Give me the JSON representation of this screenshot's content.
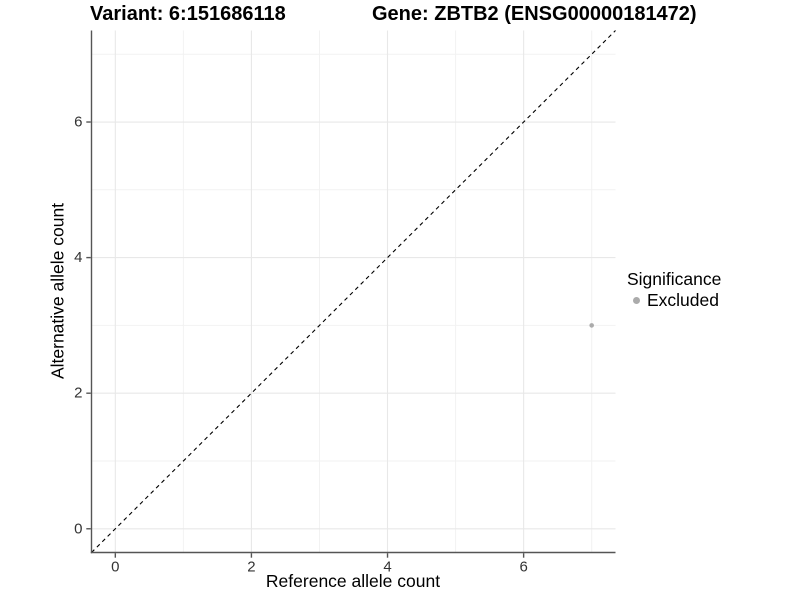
{
  "figure": {
    "background": "#FFFFFF"
  },
  "titles": {
    "variant": "Variant: 6:151686118",
    "gene": "Gene: ZBTB2 (ENSG00000181472)"
  },
  "chart_data": {
    "type": "scatter",
    "title": "Variant: 6:151686118   Gene: ZBTB2 (ENSG00000181472)",
    "xlabel": "Reference allele count",
    "ylabel": "Alternative allele count",
    "xlim": [
      -0.35,
      7.35
    ],
    "ylim": [
      -0.35,
      7.35
    ],
    "x_ticks": [
      0,
      2,
      4,
      6
    ],
    "y_ticks": [
      0,
      2,
      4,
      6
    ],
    "x_minor_ticks": [
      1,
      3,
      5,
      7
    ],
    "y_minor_ticks": [
      1,
      3,
      5,
      7
    ],
    "grid": "major+minor",
    "identity_line": {
      "style": "dashed",
      "color": "#000000",
      "from": [
        -0.35,
        -0.35
      ],
      "to": [
        7.35,
        7.35
      ]
    },
    "series": [
      {
        "name": "Excluded",
        "color": "#ABABAB",
        "points": [
          {
            "x": 7,
            "y": 3
          }
        ]
      }
    ],
    "legend": {
      "title": "Significance",
      "position": "right",
      "entries": [
        {
          "label": "Excluded",
          "color": "#ABABAB"
        }
      ]
    },
    "colors": {
      "background": "#FFFFFF",
      "axis_line": "#555555",
      "tick_label": "#333333",
      "grid_major": "#E8E8E8",
      "grid_minor": "#F2F2F2"
    }
  }
}
